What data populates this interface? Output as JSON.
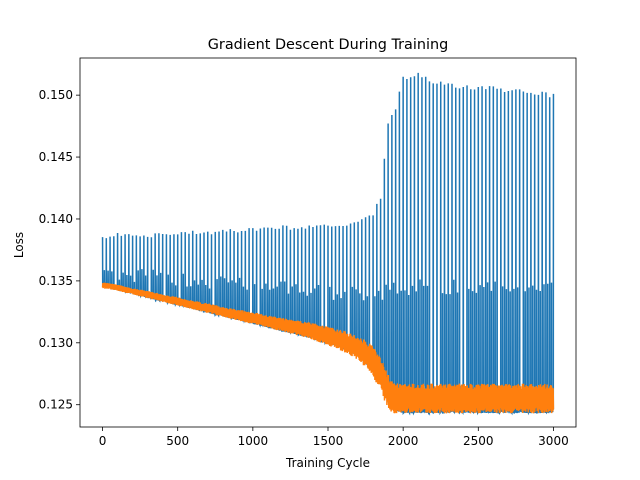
{
  "chart_data": {
    "type": "line",
    "title": "Gradient Descent During Training",
    "xlabel": "Training Cycle",
    "ylabel": "Loss",
    "xlim": [
      -150,
      3150
    ],
    "ylim": [
      0.1232,
      0.153
    ],
    "xticks": [
      0,
      500,
      1000,
      1500,
      2000,
      2500,
      3000
    ],
    "xtick_labels": [
      "0",
      "500",
      "1000",
      "1500",
      "2000",
      "2500",
      "3000"
    ],
    "yticks": [
      0.125,
      0.13,
      0.135,
      0.14,
      0.145,
      0.15
    ],
    "ytick_labels": [
      "0.125",
      "0.130",
      "0.135",
      "0.140",
      "0.145",
      "0.150"
    ],
    "grid": false,
    "legend": "none",
    "series": [
      {
        "color": "#1f77b4",
        "description": "blue training loss series with frequent spikes",
        "x": [
          0,
          100,
          200,
          300,
          400,
          500,
          600,
          700,
          800,
          900,
          1000,
          1100,
          1200,
          1300,
          1400,
          1500,
          1600,
          1700,
          1800,
          1850,
          1900,
          1950,
          2000,
          2050,
          2100,
          2200,
          2300,
          2400,
          2500,
          2600,
          2700,
          2800,
          2900,
          3000
        ],
        "baseline": [
          0.1346,
          0.1343,
          0.134,
          0.1337,
          0.1334,
          0.1331,
          0.1328,
          0.1325,
          0.1322,
          0.1319,
          0.1316,
          0.1313,
          0.131,
          0.1307,
          0.1304,
          0.13,
          0.1296,
          0.129,
          0.128,
          0.127,
          0.1252,
          0.1246,
          0.1244,
          0.1244,
          0.1244,
          0.1244,
          0.1244,
          0.1244,
          0.1244,
          0.1244,
          0.1244,
          0.1244,
          0.1244,
          0.1244
        ],
        "peak": [
          0.1388,
          0.1389,
          0.1389,
          0.1389,
          0.139,
          0.139,
          0.1391,
          0.1391,
          0.1392,
          0.1393,
          0.1393,
          0.1394,
          0.1395,
          0.1395,
          0.1396,
          0.1397,
          0.1398,
          0.14,
          0.1405,
          0.142,
          0.148,
          0.149,
          0.1517,
          0.1515,
          0.152,
          0.1512,
          0.151,
          0.1508,
          0.1508,
          0.1508,
          0.1505,
          0.1505,
          0.1503,
          0.1502
        ],
        "mid": [
          0.1361,
          0.1361,
          0.136,
          0.136,
          0.1359,
          0.1358,
          0.1357,
          0.1355,
          0.1354,
          0.1353,
          0.1352,
          0.1351,
          0.135,
          0.1349,
          0.1348,
          0.1347,
          0.1346,
          0.1345,
          0.1344,
          0.1344,
          0.135,
          0.135,
          0.135,
          0.135,
          0.1352,
          0.135,
          0.1351,
          0.1351,
          0.1351,
          0.1351,
          0.1351,
          0.1351,
          0.1351,
          0.135
        ]
      },
      {
        "color": "#ff7f0e",
        "description": "orange validation loss series, thick noisy band",
        "x": [
          0,
          100,
          200,
          300,
          400,
          500,
          600,
          700,
          800,
          900,
          1000,
          1100,
          1200,
          1300,
          1400,
          1500,
          1600,
          1700,
          1750,
          1800,
          1850,
          1880,
          1910,
          1940,
          1970,
          2000,
          2100,
          2200,
          2300,
          2400,
          2500,
          2600,
          2700,
          2800,
          2900,
          3000
        ],
        "lower": [
          0.1344,
          0.1342,
          0.1339,
          0.1336,
          0.1333,
          0.133,
          0.1327,
          0.1324,
          0.1321,
          0.1318,
          0.1315,
          0.1312,
          0.1309,
          0.1306,
          0.1302,
          0.1298,
          0.1293,
          0.1286,
          0.128,
          0.1272,
          0.1262,
          0.1252,
          0.1245,
          0.1243,
          0.1243,
          0.1243,
          0.1243,
          0.1243,
          0.1243,
          0.1243,
          0.1243,
          0.1243,
          0.1243,
          0.1243,
          0.1243,
          0.1243
        ],
        "upper": [
          0.1349,
          0.1347,
          0.1344,
          0.1342,
          0.1339,
          0.1337,
          0.1334,
          0.1332,
          0.1329,
          0.1327,
          0.1325,
          0.1322,
          0.132,
          0.1318,
          0.1316,
          0.1313,
          0.131,
          0.1305,
          0.1302,
          0.1297,
          0.1288,
          0.128,
          0.1272,
          0.1268,
          0.1267,
          0.1267,
          0.1267,
          0.1267,
          0.1267,
          0.1267,
          0.1267,
          0.1267,
          0.1267,
          0.1267,
          0.1267,
          0.1267
        ]
      }
    ]
  }
}
